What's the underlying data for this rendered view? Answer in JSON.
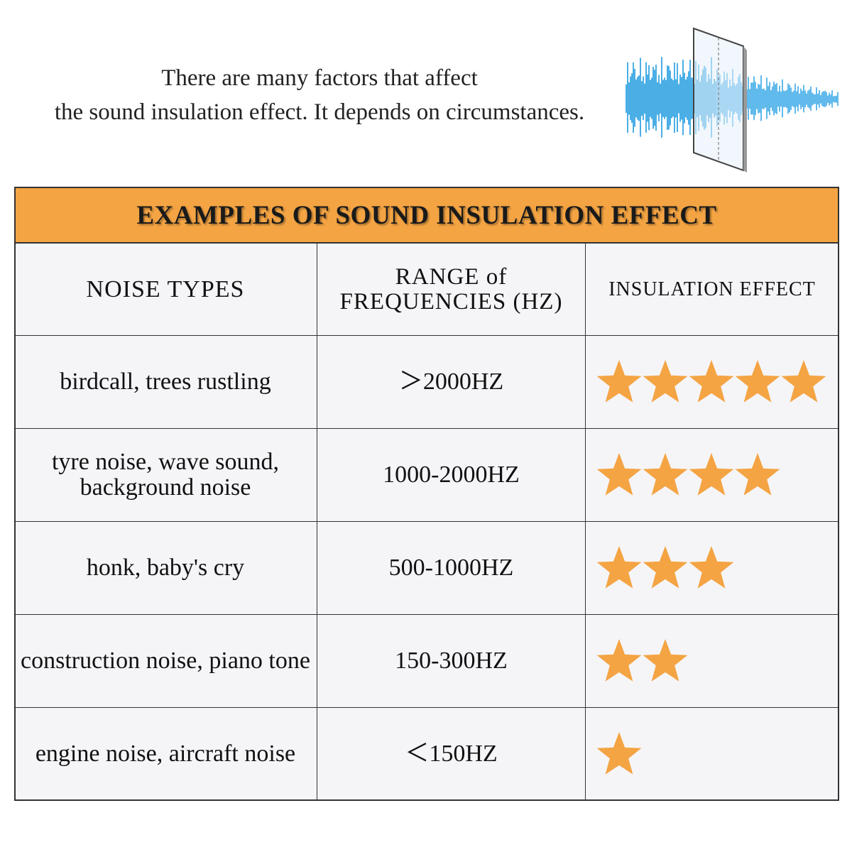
{
  "intro": {
    "lines": [
      "There are many factors that affect",
      "the sound insulation effect. It depends on circumstances."
    ]
  },
  "table": {
    "title": "EXAMPLES OF SOUND INSULATION EFFECT",
    "headers": [
      "NOISE TYPES",
      "RANGE of FREQUENCIES (HZ)",
      "INSULATION EFFECT"
    ],
    "rows": [
      {
        "noise": "birdcall, trees rustling",
        "range": "＞2000HZ",
        "stars": 5
      },
      {
        "noise": "tyre noise, wave sound, background noise",
        "range": "1000-2000HZ",
        "stars": 4
      },
      {
        "noise": "honk, baby's cry",
        "range": "500-1000HZ",
        "stars": 3
      },
      {
        "noise": "construction noise, piano tone",
        "range": "150-300HZ",
        "stars": 2
      },
      {
        "noise": "engine noise, aircraft noise",
        "range": "＜150HZ",
        "stars": 1
      }
    ]
  }
}
